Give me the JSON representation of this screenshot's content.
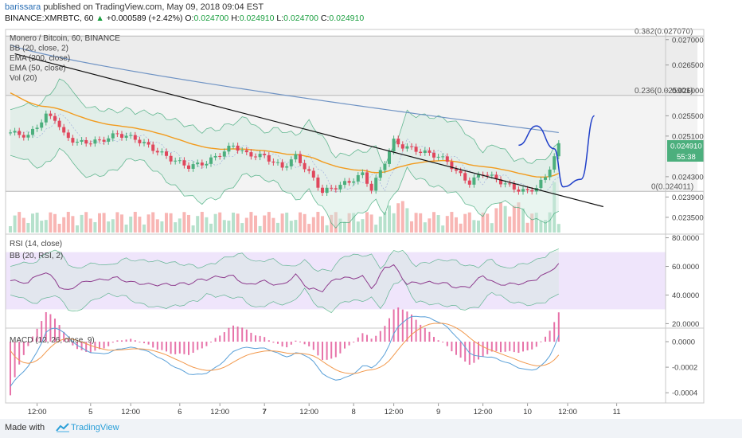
{
  "header": {
    "user": "barissara",
    "published_text": "published on TradingView.com, May 09, 2018 09:04 EST",
    "symbol": "BINANCE:XMRBTC, 60",
    "change": "+0.000589 (+2.42%)",
    "o_label": "O:",
    "o_value": "0.024700",
    "h_label": "H:",
    "h_value": "0.024910",
    "l_label": "L:",
    "l_value": "0.024700",
    "c_label": "C:",
    "c_value": "0.024910"
  },
  "footer": {
    "made_with": "Made with",
    "brand": "TradingView"
  },
  "colors": {
    "up": "#a9dcc3",
    "down": "#f7a9a7",
    "candle_up": "#4caf7d",
    "candle_down": "#e0475c",
    "ema200": "#6f93c4",
    "ema50": "#f29b1d",
    "bb": "#2aa06a",
    "rsi": "#8e3c8e",
    "macd": "#5aa0d8",
    "signal": "#f2984b",
    "hist": "#e35a9a",
    "rsi_band": "#efe5fb",
    "blue_path": "#1f3fc9"
  },
  "chart_data": [
    {
      "type": "candlestick",
      "title": "Monero / Bitcoin, 60, BINANCE",
      "legend": [
        "BB (20, close, 2)",
        "EMA (200, close)",
        "EMA (50, close)",
        "Vol (20)"
      ],
      "y_ticks": [
        "0.027000",
        "0.026500",
        "0.026000",
        "0.025500",
        "0.025100",
        "0.024910",
        "0.024300",
        "0.023900",
        "0.023500"
      ],
      "y_tick_values": [
        0.027,
        0.0265,
        0.026,
        0.0255,
        0.0251,
        0.02491,
        0.0243,
        0.0239,
        0.0235
      ],
      "ylim": [
        0.0232,
        0.0272
      ],
      "last_price": "0.024910",
      "countdown": "55:38",
      "fib_levels": [
        {
          "label": "0.382(0.027070)",
          "value": 0.02707
        },
        {
          "label": "0.236(0.025901)",
          "value": 0.025901
        },
        {
          "label": "0(0.024011)",
          "value": 0.024011
        }
      ],
      "trendline": [
        [
          1,
          0.02672
        ],
        [
          133,
          0.02371
        ]
      ],
      "projection_path": [
        [
          114,
          0.02492
        ],
        [
          118,
          0.0253
        ],
        [
          122,
          0.02485
        ],
        [
          124,
          0.0241
        ],
        [
          128,
          0.02425
        ],
        [
          131,
          0.0255
        ]
      ]
    },
    {
      "type": "line",
      "title": "RSI (14, close)",
      "legend": [
        "BB (20, RSI, 2)"
      ],
      "y_ticks": [
        "80.0000",
        "60.0000",
        "40.0000",
        "20.0000"
      ],
      "y_tick_values": [
        80,
        60,
        40,
        20
      ],
      "ylim": [
        18,
        82
      ],
      "band": [
        30,
        70
      ]
    },
    {
      "type": "bar",
      "title": "MACD (12, 26, close, 9)",
      "y_ticks": [
        "0.0000",
        "-0.0002",
        "-0.0004"
      ],
      "y_tick_values": [
        0,
        -0.0002,
        -0.0004
      ],
      "ylim": [
        -0.00048,
        0.0001
      ]
    }
  ],
  "x_ticks": [
    {
      "label": "12:00",
      "bar": 6
    },
    {
      "label": "5",
      "bar": 18
    },
    {
      "label": "12:00",
      "bar": 27
    },
    {
      "label": "6",
      "bar": 38
    },
    {
      "label": "12:00",
      "bar": 47
    },
    {
      "label": "7",
      "bar": 57
    },
    {
      "label": "12:00",
      "bar": 67
    },
    {
      "label": "8",
      "bar": 77
    },
    {
      "label": "12:00",
      "bar": 86
    },
    {
      "label": "9",
      "bar": 96
    },
    {
      "label": "12:00",
      "bar": 106
    },
    {
      "label": "10",
      "bar": 116
    },
    {
      "label": "12:00",
      "bar": 125
    },
    {
      "label": "11",
      "bar": 136
    }
  ]
}
